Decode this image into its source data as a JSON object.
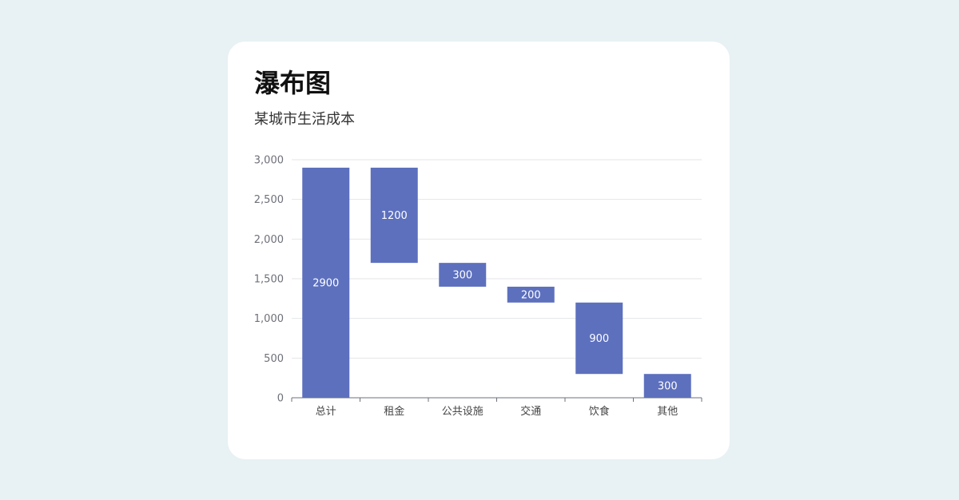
{
  "title": "瀑布图",
  "subtitle": "某城市生活成本",
  "colors": {
    "bar": "#5d70be",
    "grid": "#e4e6ea",
    "axis": "#6e7079",
    "card": "#ffffff",
    "background": "#e8f1f4"
  },
  "chart_data": {
    "type": "bar",
    "subtype": "waterfall",
    "title": "瀑布图",
    "subtitle": "某城市生活成本",
    "categories": [
      "总计",
      "租金",
      "公共设施",
      "交通",
      "饮食",
      "其他"
    ],
    "base": [
      0,
      1700,
      1400,
      1200,
      300,
      0
    ],
    "values": [
      2900,
      1200,
      300,
      200,
      900,
      300
    ],
    "labels": [
      "2900",
      "1200",
      "300",
      "200",
      "900",
      "300"
    ],
    "ylim": [
      0,
      3000
    ],
    "yticks": [
      0,
      500,
      1000,
      1500,
      2000,
      2500,
      3000
    ],
    "ytick_labels": [
      "0",
      "500",
      "1,000",
      "1,500",
      "2,000",
      "2,500",
      "3,000"
    ],
    "grid": true,
    "legend": "none"
  }
}
